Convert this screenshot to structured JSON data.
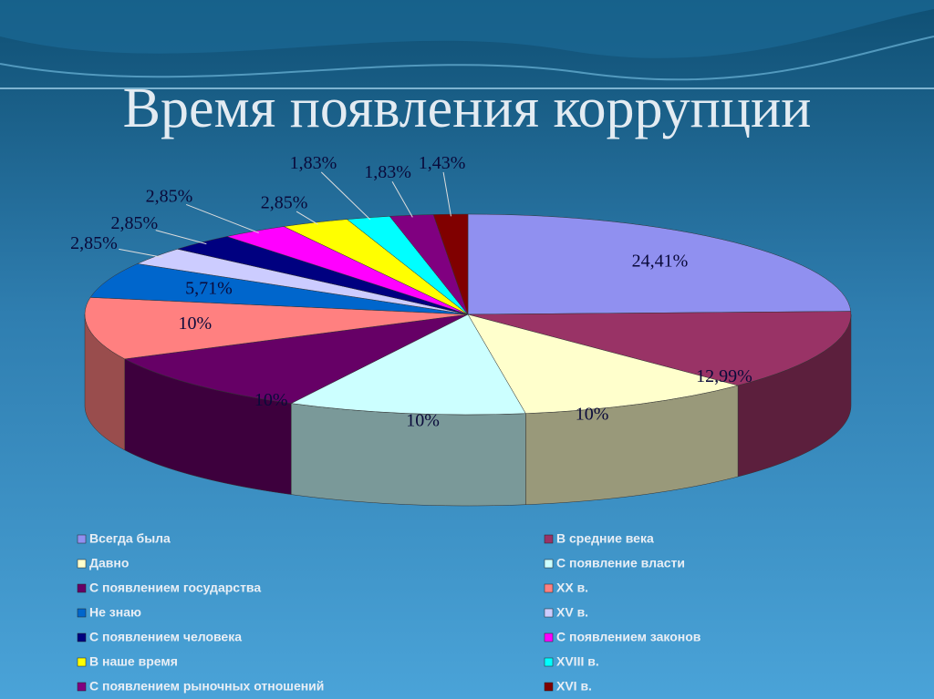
{
  "chart_data": {
    "type": "pie",
    "title": "Время появления коррупции",
    "categories": [
      "Всегда была",
      "В средние века",
      "Давно",
      "С появление власти",
      "С появлением государства",
      "XX в.",
      "Не знаю",
      "XV в.",
      "С появлением человека",
      "С появлением законов",
      "В наше время",
      "XVIII в.",
      "С появлением рыночных отношений",
      "XVI в."
    ],
    "values": [
      24.41,
      12.99,
      10,
      10,
      10,
      10,
      5.71,
      2.85,
      2.85,
      2.85,
      2.85,
      1.83,
      1.83,
      1.43
    ],
    "value_labels": [
      "24,41%",
      "12,99%",
      "10%",
      "10%",
      "10%",
      "10%",
      "5,71%",
      "2,85%",
      "2,85%",
      "2,85%",
      "2,85%",
      "1,83%",
      "1,83%",
      "1,43%"
    ],
    "colors": [
      "#9090f0",
      "#993366",
      "#ffffcc",
      "#ccffff",
      "#660066",
      "#ff8080",
      "#0066cc",
      "#ccccff",
      "#000080",
      "#ff00ff",
      "#ffff00",
      "#00ffff",
      "#800080",
      "#800000"
    ]
  }
}
